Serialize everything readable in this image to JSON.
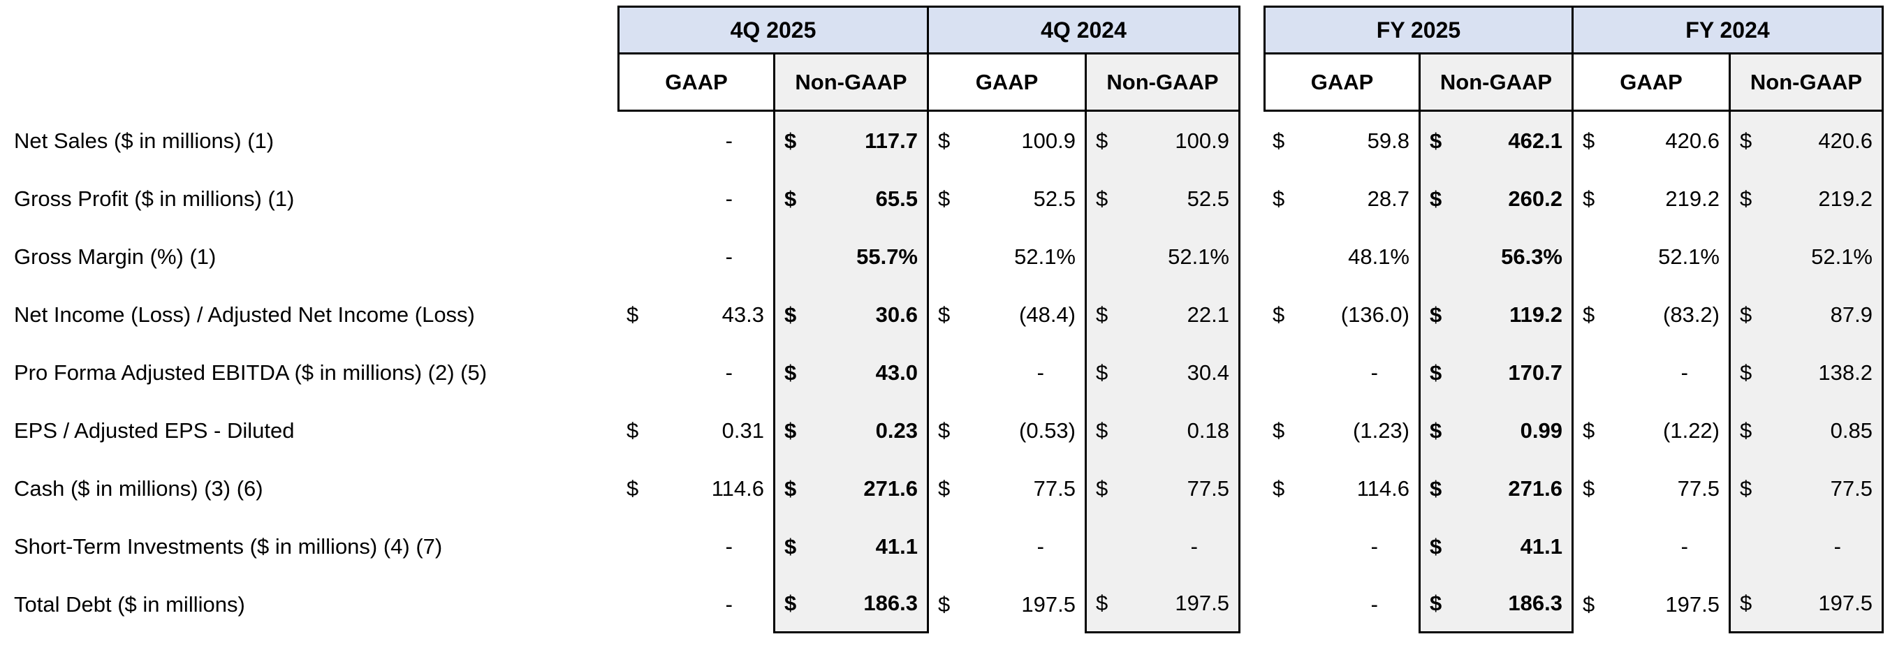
{
  "colors": {
    "period_band_bg": "#d9e1f2",
    "nongaap_column_bg": "#f0f0f0",
    "border": "#000000",
    "page_bg": "#ffffff"
  },
  "table": {
    "period_groups": [
      {
        "label": "4Q 2025"
      },
      {
        "label": "4Q 2024"
      },
      {
        "label": "FY 2025"
      },
      {
        "label": "FY 2024"
      }
    ],
    "subheaders": [
      "GAAP",
      "Non-GAAP",
      "GAAP",
      "Non-GAAP",
      "GAAP",
      "Non-GAAP",
      "GAAP",
      "Non-GAAP"
    ],
    "rows": [
      {
        "label": "Net Sales ($ in millions) (1)",
        "cells": [
          {
            "v": "-"
          },
          {
            "d": "$",
            "v": "117.7",
            "b": true
          },
          {
            "d": "$",
            "v": "100.9"
          },
          {
            "d": "$",
            "v": "100.9"
          },
          {
            "d": "$",
            "v": "59.8"
          },
          {
            "d": "$",
            "v": "462.1",
            "b": true
          },
          {
            "d": "$",
            "v": "420.6"
          },
          {
            "d": "$",
            "v": "420.6"
          }
        ]
      },
      {
        "label": "Gross Profit ($ in millions) (1)",
        "cells": [
          {
            "v": "-"
          },
          {
            "d": "$",
            "v": "65.5",
            "b": true
          },
          {
            "d": "$",
            "v": "52.5"
          },
          {
            "d": "$",
            "v": "52.5"
          },
          {
            "d": "$",
            "v": "28.7"
          },
          {
            "d": "$",
            "v": "260.2",
            "b": true
          },
          {
            "d": "$",
            "v": "219.2"
          },
          {
            "d": "$",
            "v": "219.2"
          }
        ]
      },
      {
        "label": "Gross Margin (%) (1)",
        "cells": [
          {
            "v": "-"
          },
          {
            "v": "55.7%",
            "b": true
          },
          {
            "v": "52.1%"
          },
          {
            "v": "52.1%"
          },
          {
            "v": "48.1%"
          },
          {
            "v": "56.3%",
            "b": true
          },
          {
            "v": "52.1%"
          },
          {
            "v": "52.1%"
          }
        ]
      },
      {
        "label": "Net Income (Loss) / Adjusted Net Income (Loss)",
        "cells": [
          {
            "d": "$",
            "v": "43.3"
          },
          {
            "d": "$",
            "v": "30.6",
            "b": true
          },
          {
            "d": "$",
            "v": "(48.4)"
          },
          {
            "d": "$",
            "v": "22.1"
          },
          {
            "d": "$",
            "v": "(136.0)"
          },
          {
            "d": "$",
            "v": "119.2",
            "b": true
          },
          {
            "d": "$",
            "v": "(83.2)"
          },
          {
            "d": "$",
            "v": "87.9"
          }
        ]
      },
      {
        "label": "Pro Forma Adjusted EBITDA ($ in millions) (2) (5)",
        "cells": [
          {
            "v": "-"
          },
          {
            "d": "$",
            "v": "43.0",
            "b": true
          },
          {
            "v": "-"
          },
          {
            "d": "$",
            "v": "30.4"
          },
          {
            "v": "-"
          },
          {
            "d": "$",
            "v": "170.7",
            "b": true
          },
          {
            "v": "-"
          },
          {
            "d": "$",
            "v": "138.2"
          }
        ]
      },
      {
        "label": "EPS / Adjusted EPS - Diluted",
        "cells": [
          {
            "d": "$",
            "v": "0.31"
          },
          {
            "d": "$",
            "v": "0.23",
            "b": true
          },
          {
            "d": "$",
            "v": "(0.53)"
          },
          {
            "d": "$",
            "v": "0.18"
          },
          {
            "d": "$",
            "v": "(1.23)"
          },
          {
            "d": "$",
            "v": "0.99",
            "b": true
          },
          {
            "d": "$",
            "v": "(1.22)"
          },
          {
            "d": "$",
            "v": "0.85"
          }
        ]
      },
      {
        "label": "Cash ($ in millions) (3) (6)",
        "cells": [
          {
            "d": "$",
            "v": "114.6"
          },
          {
            "d": "$",
            "v": "271.6",
            "b": true
          },
          {
            "d": "$",
            "v": "77.5"
          },
          {
            "d": "$",
            "v": "77.5"
          },
          {
            "d": "$",
            "v": "114.6"
          },
          {
            "d": "$",
            "v": "271.6",
            "b": true
          },
          {
            "d": "$",
            "v": "77.5"
          },
          {
            "d": "$",
            "v": "77.5"
          }
        ]
      },
      {
        "label": "Short-Term Investments ($ in millions) (4) (7)",
        "cells": [
          {
            "v": "-"
          },
          {
            "d": "$",
            "v": "41.1",
            "b": true
          },
          {
            "v": "-"
          },
          {
            "v": "-"
          },
          {
            "v": "-"
          },
          {
            "d": "$",
            "v": "41.1",
            "b": true
          },
          {
            "v": "-"
          },
          {
            "v": "-"
          }
        ]
      },
      {
        "label": "Total Debt ($ in millions)",
        "cells": [
          {
            "v": "-"
          },
          {
            "d": "$",
            "v": "186.3",
            "b": true
          },
          {
            "d": "$",
            "v": "197.5"
          },
          {
            "d": "$",
            "v": "197.5"
          },
          {
            "v": "-"
          },
          {
            "d": "$",
            "v": "186.3",
            "b": true
          },
          {
            "d": "$",
            "v": "197.5"
          },
          {
            "d": "$",
            "v": "197.5"
          }
        ]
      }
    ]
  }
}
